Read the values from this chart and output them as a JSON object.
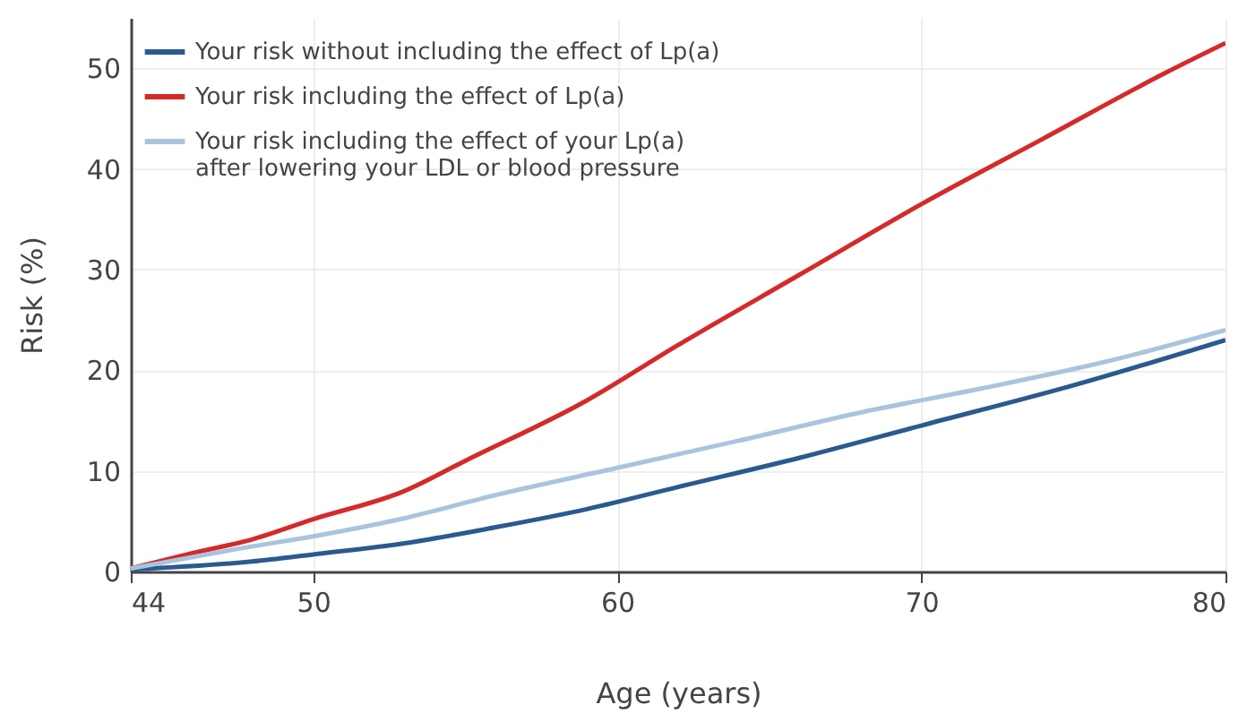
{
  "chart_data": {
    "type": "line",
    "xlabel": "Age (years)",
    "ylabel": "Risk (%)",
    "xlim": [
      44,
      80
    ],
    "xticks": [
      44,
      50,
      60,
      70,
      80
    ],
    "ylim": [
      0,
      55
    ],
    "yticks": [
      0,
      10,
      20,
      30,
      40,
      50
    ],
    "grid": true,
    "legend": "top left",
    "line_style": "solid",
    "marker": "none",
    "series": [
      {
        "name": "Your risk without including the effect of Lp(a)",
        "color": "#2a5a8f",
        "x": [
          44,
          48,
          50,
          53,
          56,
          59,
          62,
          66,
          70,
          75,
          80
        ],
        "values": [
          0.2,
          1,
          1.7,
          2.8,
          4.4,
          6.2,
          8.4,
          11.3,
          14.5,
          18.5,
          23
        ]
      },
      {
        "name": "Your risk including the effect of Lp(a)",
        "color": "#d42a2a",
        "x": [
          44,
          46,
          48,
          50,
          53,
          55,
          59,
          62,
          66,
          70,
          74,
          78,
          80
        ],
        "values": [
          0.3,
          1.8,
          3.2,
          5.2,
          8,
          11,
          17,
          22.5,
          29.5,
          36.5,
          43,
          49.5,
          52.5
        ]
      },
      {
        "name": "Your risk including the effect of your Lp(a)\n after lowering your LDL or blood pressure",
        "color": "#a9c4de",
        "x": [
          44,
          48,
          50,
          53,
          56,
          60,
          64,
          68,
          72,
          76,
          80
        ],
        "values": [
          0.3,
          2.5,
          3.5,
          5.3,
          7.6,
          10.3,
          13,
          15.8,
          18.2,
          20.8,
          24
        ]
      }
    ]
  }
}
